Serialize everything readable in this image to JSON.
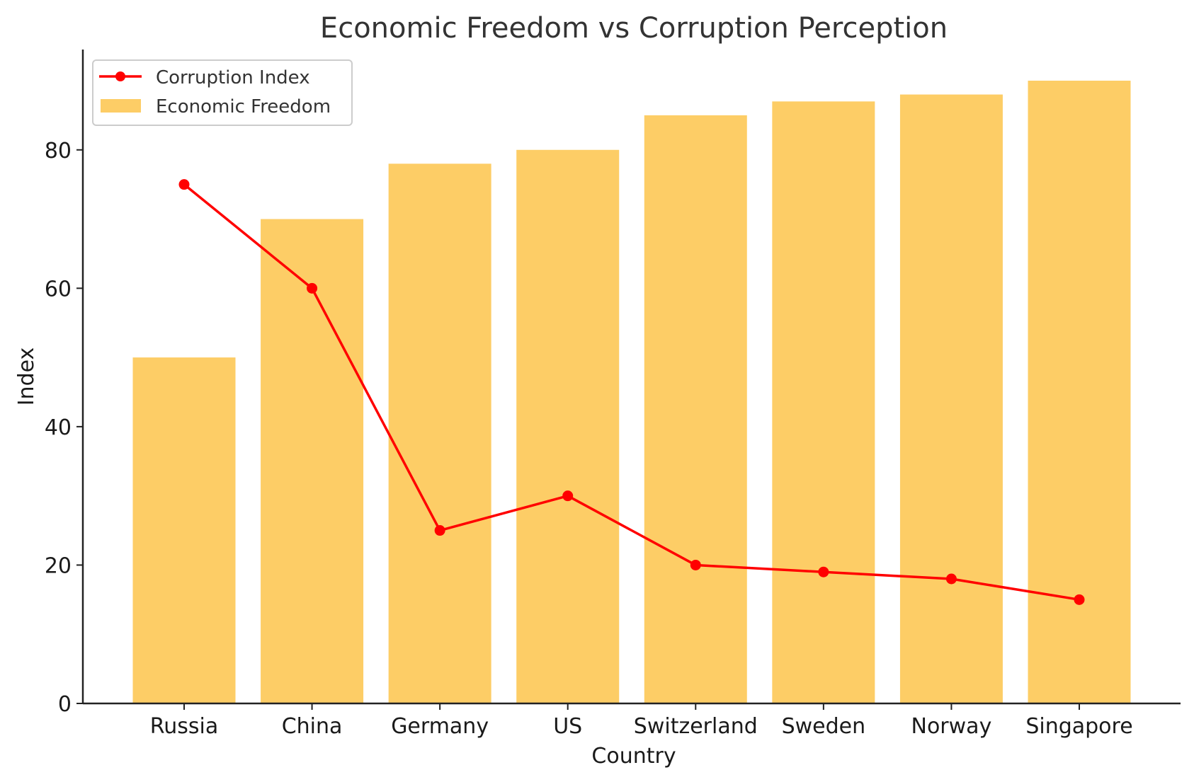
{
  "chart_data": {
    "type": "bar+line",
    "title": "Economic Freedom vs Corruption Perception",
    "xlabel": "Country",
    "ylabel": "Index",
    "categories": [
      "Russia",
      "China",
      "Germany",
      "US",
      "Switzerland",
      "Sweden",
      "Norway",
      "Singapore"
    ],
    "series": [
      {
        "name": "Economic Freedom",
        "type": "bar",
        "color": "#fdcd66",
        "values": [
          50,
          70,
          78,
          80,
          85,
          87,
          88,
          90
        ]
      },
      {
        "name": "Corruption Index",
        "type": "line",
        "color": "#ff0000",
        "marker": "circle",
        "values": [
          75,
          60,
          25,
          30,
          20,
          19,
          18,
          15
        ]
      }
    ],
    "ylim": [
      0,
      94.5
    ],
    "yticks": [
      0,
      20,
      40,
      60,
      80
    ],
    "grid": false,
    "legend": "top-left"
  }
}
